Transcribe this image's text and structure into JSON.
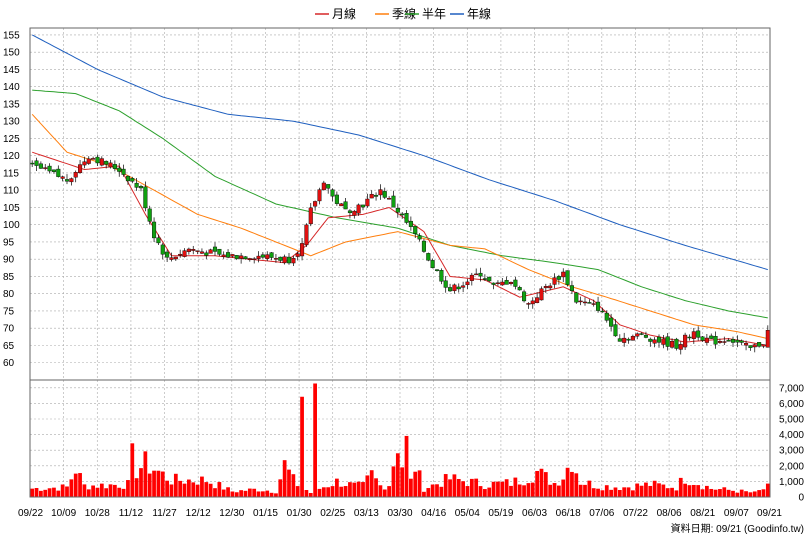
{
  "chart_data": {
    "type": "candlestick",
    "legend": [
      {
        "label": "月線",
        "color": "#d62728"
      },
      {
        "label": "季線",
        "color": "#ff7f0e"
      },
      {
        "label": "半年",
        "color": "#2ca02c"
      },
      {
        "label": "年線",
        "color": "#1f5fbf"
      }
    ],
    "price_axis": {
      "ticks": [
        60,
        65,
        70,
        75,
        80,
        85,
        90,
        95,
        100,
        105,
        110,
        115,
        120,
        125,
        130,
        135,
        140,
        145,
        150,
        155
      ],
      "range": [
        55,
        157
      ]
    },
    "volume_axis": {
      "tick_labels": [
        "0",
        "1,000",
        "2,000",
        "3,000",
        "4,000",
        "5,000",
        "6,000",
        "7,000"
      ],
      "range": [
        0,
        7500
      ]
    },
    "x_tick_labels": [
      "09/22",
      "10/09",
      "10/28",
      "11/12",
      "11/27",
      "12/12",
      "12/30",
      "01/15",
      "01/30",
      "02/25",
      "03/13",
      "03/30",
      "04/16",
      "05/04",
      "05/19",
      "06/03",
      "06/18",
      "07/06",
      "07/22",
      "08/06",
      "08/21",
      "09/07",
      "09/21"
    ],
    "credit": "資料日期: 09/21 (Goodinfo.tw)",
    "colors": {
      "up": "#e01010",
      "down": "#10a010",
      "volume": "#ff0000",
      "grid": "#aaaaaa"
    },
    "series": {
      "close_keypoints": [
        [
          0,
          117
        ],
        [
          8,
          113
        ],
        [
          13,
          120
        ],
        [
          20,
          116
        ],
        [
          25,
          110
        ],
        [
          28,
          97
        ],
        [
          31,
          90
        ],
        [
          36,
          93
        ],
        [
          44,
          91
        ],
        [
          52,
          91
        ],
        [
          59,
          90
        ],
        [
          62,
          94
        ],
        [
          64,
          104
        ],
        [
          67,
          113
        ],
        [
          69,
          108
        ],
        [
          72,
          104
        ],
        [
          76,
          106
        ],
        [
          80,
          110
        ],
        [
          84,
          104
        ],
        [
          88,
          97
        ],
        [
          92,
          88
        ],
        [
          96,
          81
        ],
        [
          99,
          83
        ],
        [
          103,
          86
        ],
        [
          106,
          82
        ],
        [
          110,
          84
        ],
        [
          114,
          77
        ],
        [
          118,
          82
        ],
        [
          122,
          86
        ],
        [
          125,
          78
        ],
        [
          130,
          76
        ],
        [
          135,
          67
        ],
        [
          140,
          68
        ],
        [
          145,
          66
        ],
        [
          148,
          65
        ],
        [
          152,
          69
        ],
        [
          156,
          66
        ],
        [
          160,
          67
        ],
        [
          165,
          64
        ],
        [
          168,
          66
        ],
        [
          169,
          69
        ]
      ],
      "month_ma": [
        [
          0,
          121
        ],
        [
          12,
          116
        ],
        [
          20,
          117
        ],
        [
          26,
          103
        ],
        [
          32,
          91
        ],
        [
          42,
          91
        ],
        [
          58,
          89
        ],
        [
          63,
          94
        ],
        [
          68,
          102
        ],
        [
          76,
          103
        ],
        [
          82,
          105
        ],
        [
          90,
          98
        ],
        [
          96,
          85
        ],
        [
          104,
          84
        ],
        [
          112,
          79
        ],
        [
          122,
          82
        ],
        [
          129,
          78
        ],
        [
          135,
          71
        ],
        [
          142,
          68
        ],
        [
          150,
          66
        ],
        [
          160,
          67
        ],
        [
          169,
          65
        ]
      ],
      "quarter_ma": [
        [
          0,
          132
        ],
        [
          8,
          121
        ],
        [
          18,
          117
        ],
        [
          28,
          110
        ],
        [
          38,
          103
        ],
        [
          48,
          99
        ],
        [
          58,
          94
        ],
        [
          64,
          91
        ],
        [
          72,
          95
        ],
        [
          84,
          98
        ],
        [
          96,
          94
        ],
        [
          104,
          93
        ],
        [
          114,
          87
        ],
        [
          124,
          82
        ],
        [
          132,
          79
        ],
        [
          142,
          75
        ],
        [
          152,
          71
        ],
        [
          162,
          69
        ],
        [
          169,
          67
        ]
      ],
      "half_ma": [
        [
          0,
          139
        ],
        [
          10,
          138
        ],
        [
          20,
          133
        ],
        [
          30,
          125
        ],
        [
          42,
          114
        ],
        [
          56,
          106
        ],
        [
          70,
          102
        ],
        [
          84,
          99
        ],
        [
          96,
          94
        ],
        [
          108,
          91
        ],
        [
          120,
          89
        ],
        [
          130,
          87
        ],
        [
          140,
          82
        ],
        [
          150,
          78
        ],
        [
          160,
          75
        ],
        [
          169,
          73
        ]
      ],
      "year_ma": [
        [
          0,
          155
        ],
        [
          15,
          145
        ],
        [
          30,
          137
        ],
        [
          45,
          132
        ],
        [
          60,
          130
        ],
        [
          75,
          126
        ],
        [
          90,
          120
        ],
        [
          105,
          113
        ],
        [
          120,
          107
        ],
        [
          135,
          100
        ],
        [
          150,
          94
        ],
        [
          169,
          87
        ]
      ],
      "volume_keypoints": [
        [
          0,
          600
        ],
        [
          8,
          700
        ],
        [
          10,
          2000
        ],
        [
          12,
          800
        ],
        [
          22,
          900
        ],
        [
          23,
          2800
        ],
        [
          24,
          1900
        ],
        [
          26,
          2400
        ],
        [
          28,
          2000
        ],
        [
          32,
          1200
        ],
        [
          40,
          1200
        ],
        [
          46,
          400
        ],
        [
          52,
          550
        ],
        [
          56,
          400
        ],
        [
          58,
          2300
        ],
        [
          60,
          1200
        ],
        [
          61,
          900
        ],
        [
          62,
          7500
        ],
        [
          63,
          500
        ],
        [
          64,
          300
        ],
        [
          65,
          6400
        ],
        [
          66,
          600
        ],
        [
          70,
          1100
        ],
        [
          74,
          800
        ],
        [
          76,
          800
        ],
        [
          78,
          1600
        ],
        [
          80,
          800
        ],
        [
          82,
          900
        ],
        [
          84,
          4000
        ],
        [
          85,
          2300
        ],
        [
          86,
          3800
        ],
        [
          87,
          1100
        ],
        [
          88,
          2200
        ],
        [
          90,
          600
        ],
        [
          96,
          1300
        ],
        [
          104,
          900
        ],
        [
          110,
          1000
        ],
        [
          113,
          1300
        ],
        [
          116,
          1800
        ],
        [
          120,
          1000
        ],
        [
          122,
          1500
        ],
        [
          124,
          2700
        ],
        [
          125,
          1900
        ],
        [
          126,
          1100
        ],
        [
          130,
          800
        ],
        [
          136,
          700
        ],
        [
          142,
          900
        ],
        [
          148,
          700
        ],
        [
          150,
          1400
        ],
        [
          156,
          600
        ],
        [
          160,
          500
        ],
        [
          166,
          300
        ],
        [
          169,
          700
        ]
      ]
    }
  }
}
